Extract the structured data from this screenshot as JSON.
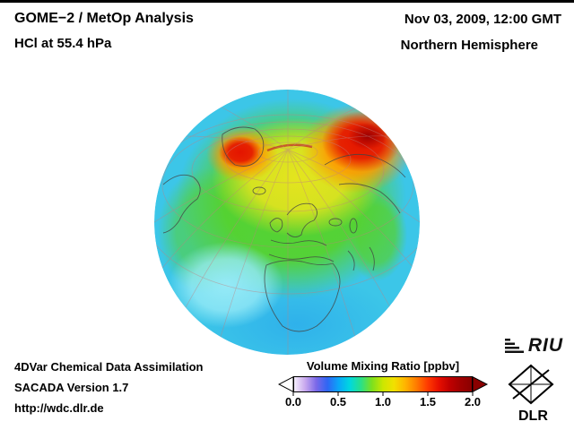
{
  "header": {
    "analysis_title": "GOME−2 / MetOp Analysis",
    "level_title": "HCl at 55.4 hPa",
    "datetime": "Nov 03, 2009, 12:00 GMT",
    "hemisphere": "Northern Hemisphere"
  },
  "footer": {
    "line1": "4DVar Chemical Data Assimilation",
    "line2": "SACADA Version 1.7",
    "line3": "http://wdc.dlr.de"
  },
  "colorbar": {
    "title": "Volume Mixing Ratio [ppbv]",
    "tick_labels": [
      "0.0",
      "0.5",
      "1.0",
      "1.5",
      "2.0"
    ],
    "gradient_colors": [
      "#f4eefc",
      "#c8a8ee",
      "#7a68e8",
      "#2e66f4",
      "#0aa6f8",
      "#00d8e0",
      "#28e08a",
      "#7ce01e",
      "#cce600",
      "#f2e000",
      "#ffb400",
      "#ff7c00",
      "#ff3c00",
      "#e81000",
      "#c00000",
      "#a00000",
      "#8a0000"
    ],
    "under_arrow_color": "#ffffff",
    "over_arrow_color": "#8a0000"
  },
  "logos": {
    "riu": "RIU",
    "dlr": "DLR"
  },
  "chart_data": {
    "type": "heatmap",
    "title": "GOME−2 / MetOp Analysis — HCl at 55.4 hPa",
    "datetime": "Nov 03, 2009, 12:00 GMT",
    "projection": "orthographic globe, Northern Hemisphere",
    "variable": "HCl Volume Mixing Ratio",
    "units": "ppbv",
    "colorbar_range": [
      0.0,
      2.0
    ],
    "colorbar_ticks": [
      0.0,
      0.5,
      1.0,
      1.5,
      2.0
    ],
    "field_features": [
      {
        "area": "northern Siberia / Arctic Russia",
        "value_ppbv": 1.8
      },
      {
        "area": "Greenland / Canadian Arctic",
        "value_ppbv": 1.6
      },
      {
        "area": "polar cap ring and northern Europe",
        "value_ppbv": 1.1
      },
      {
        "area": "mid-latitude green band (N Atlantic, Europe, central Asia)",
        "value_ppbv": 0.9
      },
      {
        "area": "subtropical ring (Africa, Middle East, S Asia)",
        "value_ppbv": 0.6
      },
      {
        "area": "pale cyan swirl, lower-left (subtropical Atlantic)",
        "value_ppbv": 0.4
      }
    ]
  }
}
